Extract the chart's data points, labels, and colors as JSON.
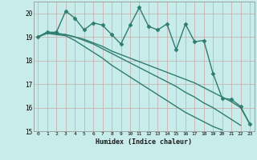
{
  "xlabel": "Humidex (Indice chaleur)",
  "ylabel": "",
  "background_color": "#c8ecea",
  "grid_color": "#c8a8a8",
  "line_color": "#2e7d6e",
  "xlim": [
    -0.5,
    23.5
  ],
  "ylim": [
    15,
    20.5
  ],
  "yticks": [
    15,
    16,
    17,
    18,
    19,
    20
  ],
  "xticks": [
    0,
    1,
    2,
    3,
    4,
    5,
    6,
    7,
    8,
    9,
    10,
    11,
    12,
    13,
    14,
    15,
    16,
    17,
    18,
    19,
    20,
    21,
    22,
    23
  ],
  "series": [
    {
      "x": [
        0,
        1,
        2,
        3,
        4,
        5,
        6,
        7,
        8,
        9,
        10,
        11,
        12,
        13,
        14,
        15,
        16,
        17,
        18,
        19,
        20,
        21,
        22,
        23
      ],
      "y": [
        19.0,
        19.2,
        19.2,
        20.1,
        19.8,
        19.3,
        19.6,
        19.5,
        19.1,
        18.7,
        19.5,
        20.25,
        19.45,
        19.3,
        19.55,
        18.45,
        19.55,
        18.8,
        18.85,
        17.45,
        16.4,
        16.35,
        16.05,
        15.3
      ],
      "marker": "D",
      "markersize": 2.5,
      "linewidth": 1.0
    },
    {
      "x": [
        0,
        1,
        2,
        3,
        4,
        5,
        6,
        7,
        8,
        9,
        10,
        11,
        12,
        13,
        14,
        15,
        16,
        17,
        18,
        19,
        20,
        21,
        22,
        23
      ],
      "y": [
        19.0,
        19.2,
        19.15,
        19.1,
        19.0,
        18.9,
        18.75,
        18.6,
        18.4,
        18.25,
        18.1,
        17.95,
        17.8,
        17.65,
        17.5,
        17.35,
        17.2,
        17.05,
        16.85,
        16.65,
        16.45,
        16.25,
        16.0,
        15.3
      ],
      "marker": null,
      "markersize": 0,
      "linewidth": 1.0
    },
    {
      "x": [
        0,
        1,
        2,
        3,
        4,
        5,
        6,
        7,
        8,
        9,
        10,
        11,
        12,
        13,
        14,
        15,
        16,
        17,
        18,
        19,
        20,
        21,
        22,
        23
      ],
      "y": [
        19.0,
        19.15,
        19.1,
        19.05,
        18.85,
        18.6,
        18.35,
        18.1,
        17.8,
        17.55,
        17.3,
        17.05,
        16.8,
        16.55,
        16.3,
        16.05,
        15.8,
        15.6,
        15.4,
        15.2,
        15.05,
        null,
        null,
        null
      ],
      "marker": null,
      "markersize": 0,
      "linewidth": 1.0
    },
    {
      "x": [
        0,
        1,
        2,
        3,
        4,
        5,
        6,
        7,
        8,
        9,
        10,
        11,
        12,
        13,
        14,
        15,
        16,
        17,
        18,
        19,
        20,
        21,
        22,
        23
      ],
      "y": [
        19.0,
        19.2,
        19.15,
        19.1,
        19.0,
        18.85,
        18.7,
        18.5,
        18.3,
        18.1,
        17.9,
        17.7,
        17.5,
        17.3,
        17.1,
        16.9,
        16.65,
        16.45,
        16.2,
        16.0,
        15.75,
        15.5,
        15.25,
        null
      ],
      "marker": null,
      "markersize": 0,
      "linewidth": 1.0
    }
  ]
}
